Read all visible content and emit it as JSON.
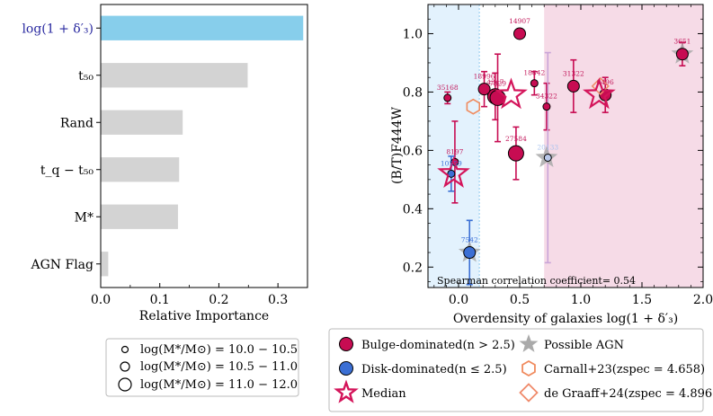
{
  "colors": {
    "bar_highlight": "#87ceeb",
    "bar_default": "#d3d3d3",
    "bulge": "#c70c52",
    "disk": "#3b6fd4",
    "median": "#d4145a",
    "agn": "#a9a9a9",
    "carnall": "#f08a5d",
    "degraaff": "#f08a6a",
    "region_low": "#e3f2fd",
    "region_high": "#f6dbe7",
    "axis": "#000000",
    "ylabel_highlight": "#2a2aa0"
  },
  "chart_data": [
    {
      "type": "bar",
      "orientation": "horizontal",
      "xlabel": "Relative Importance",
      "ylabel": "",
      "xlim": [
        0.0,
        0.35
      ],
      "xticks": [
        "0.0",
        "0.1",
        "0.2",
        "0.3"
      ],
      "categories": [
        "log(1 + δ′₃)",
        "t₅₀",
        "Rand",
        "t_q − t₅₀",
        "M*",
        "AGN Flag"
      ],
      "values": [
        0.342,
        0.248,
        0.138,
        0.132,
        0.13,
        0.012
      ],
      "highlighted": [
        "log(1 + δ′₃)"
      ]
    },
    {
      "type": "scatter",
      "xlabel": "Overdensity of galaxies log(1 + δ′₃)",
      "ylabel": "(B/T)F444W",
      "xlim": [
        -0.25,
        2.0
      ],
      "ylim": [
        0.13,
        1.1
      ],
      "xticks": [
        "0.0",
        "0.5",
        "1.0",
        "1.5",
        "2.0"
      ],
      "yticks": [
        "0.2",
        "0.4",
        "0.6",
        "0.8",
        "1.0"
      ],
      "annotation": "Spearman correlation coefficient= 0.54",
      "bulge_points": [
        {
          "id": "35168",
          "x": -0.09,
          "y": 0.78,
          "err": 0.02,
          "size": 1
        },
        {
          "id": "14907",
          "x": 0.5,
          "y": 1.0,
          "err": 0.0,
          "size": 2
        },
        {
          "id": "4347",
          "x": 0.3,
          "y": 0.785,
          "err": 0.08,
          "size": 3
        },
        {
          "id": "18996",
          "x": 0.21,
          "y": 0.81,
          "err": 0.06,
          "size": 2
        },
        {
          "id": "7329",
          "x": 0.32,
          "y": 0.78,
          "err": 0.15,
          "size": 3
        },
        {
          "id": "18842",
          "x": 0.62,
          "y": 0.83,
          "err": 0.04,
          "size": 1
        },
        {
          "id": "34322",
          "x": 0.72,
          "y": 0.75,
          "err": 0.08,
          "size": 1
        },
        {
          "id": "27584",
          "x": 0.47,
          "y": 0.59,
          "err": 0.09,
          "size": 3
        },
        {
          "id": "8197",
          "x": -0.03,
          "y": 0.56,
          "err": 0.14,
          "size": 1
        },
        {
          "id": "31322",
          "x": 0.94,
          "y": 0.82,
          "err": 0.09,
          "size": 2
        },
        {
          "id": "6496",
          "x": 1.2,
          "y": 0.79,
          "err": 0.06,
          "size": 2
        },
        {
          "id": "3651",
          "x": 1.83,
          "y": 0.93,
          "err": 0.04,
          "size": 2
        }
      ],
      "disk_points": [
        {
          "id": "10559",
          "x": -0.06,
          "y": 0.52,
          "err": 0.06,
          "size": 1
        },
        {
          "id": "7542",
          "x": 0.09,
          "y": 0.25,
          "err": 0.11,
          "size": 2
        },
        {
          "id": "20133",
          "x": 0.73,
          "y": 0.575,
          "err": 0.36,
          "size": 1
        }
      ],
      "median_points": [
        {
          "x": -0.04,
          "y": 0.52
        },
        {
          "x": 0.43,
          "y": 0.79
        },
        {
          "x": 1.15,
          "y": 0.79
        }
      ],
      "agn_points": [
        {
          "x": 0.09,
          "y": 0.25
        },
        {
          "x": 0.72,
          "y": 0.575
        },
        {
          "x": 1.83,
          "y": 0.93
        }
      ],
      "carnall_points": [
        {
          "x": 0.12,
          "y": 0.75
        }
      ],
      "degraaff_points": [
        {
          "x": 1.16,
          "y": 0.82
        }
      ]
    }
  ],
  "size_legend": {
    "items": [
      "log(M*/M⊙) = 10.0 − 10.5",
      "log(M*/M⊙) = 10.5 − 11.0",
      "log(M*/M⊙) = 11.0 − 12.0"
    ]
  },
  "marker_legend": {
    "bulge": "Bulge-dominated(n > 2.5)",
    "disk": "Disk-dominated(n ≤ 2.5)",
    "median": "Median",
    "agn": "Possible AGN",
    "carnall": "Carnall+23(zspec = 4.658)",
    "degraaff": "de Graaff+24(zspec = 4.896)"
  }
}
